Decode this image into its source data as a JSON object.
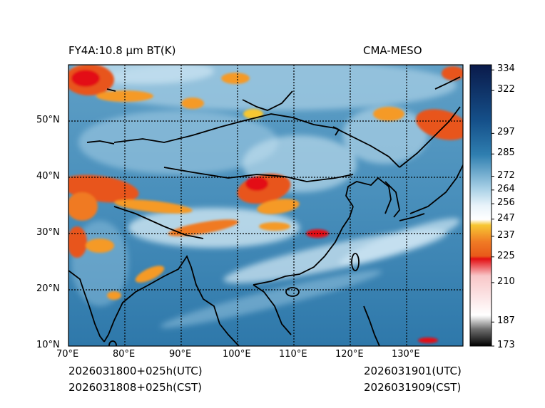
{
  "header": {
    "title_left": "FY4A:10.8 µm BT(K)",
    "title_right": "CMA-MESO"
  },
  "footer": {
    "utc_init": "2026031800+025h(UTC)",
    "cst_init": "2026031808+025h(CST)",
    "utc_valid": "2026031901(UTC)",
    "cst_valid": "2026031909(CST)"
  },
  "map": {
    "lon_ticks": [
      "70°E",
      "80°E",
      "90°E",
      "100°E",
      "110°E",
      "120°E",
      "130°E"
    ],
    "lat_ticks": [
      "10°N",
      "20°N",
      "30°N",
      "40°N",
      "50°N"
    ],
    "lon_range": [
      70,
      140
    ],
    "lat_range": [
      10,
      60
    ]
  },
  "colorbar": {
    "min": 173,
    "max": 337,
    "tick_values": [
      334,
      322,
      297,
      285,
      272,
      264,
      256,
      247,
      237,
      225,
      210,
      187,
      173
    ],
    "tick_labels": [
      "334",
      "322",
      "297",
      "285",
      "272",
      "264",
      "256",
      "247",
      "237",
      "225",
      "210",
      "187",
      "173"
    ],
    "colors": {
      "deep_navy": "#0a1a4a",
      "ocean_blue": "#2f7fb0",
      "light_blue": "#bcdcec",
      "white": "#ffffff",
      "yellow": "#f7c733",
      "orange": "#e8551c",
      "red": "#e30f13",
      "pink": "#f8c6c8",
      "gray": "#8a8a8a",
      "black": "#000000"
    }
  }
}
